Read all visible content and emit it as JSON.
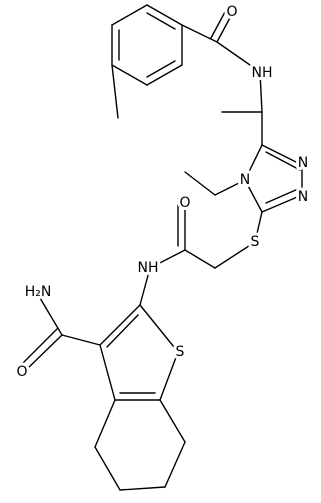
{
  "atom_labels": [
    "O",
    "NH",
    "N",
    "N",
    "N",
    "S",
    "O",
    "NH",
    "H₂N",
    "O",
    "S"
  ]
}
